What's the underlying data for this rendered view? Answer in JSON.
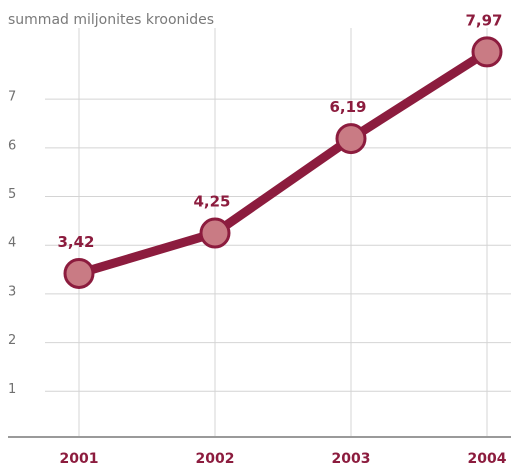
{
  "chart_data": {
    "type": "line",
    "title": "summad miljonites kroonides",
    "categories": [
      "2001",
      "2002",
      "2003",
      "2004"
    ],
    "values": [
      3.42,
      4.25,
      6.19,
      7.97
    ],
    "value_labels": [
      "3,42",
      "4,25",
      "6,19",
      "7,97"
    ],
    "color": "#8c1c3e",
    "marker_color": "#c97b84",
    "ylim": [
      0,
      8.2
    ],
    "yticks": [
      1,
      2,
      3,
      4,
      5,
      6,
      7
    ],
    "grid": true
  }
}
